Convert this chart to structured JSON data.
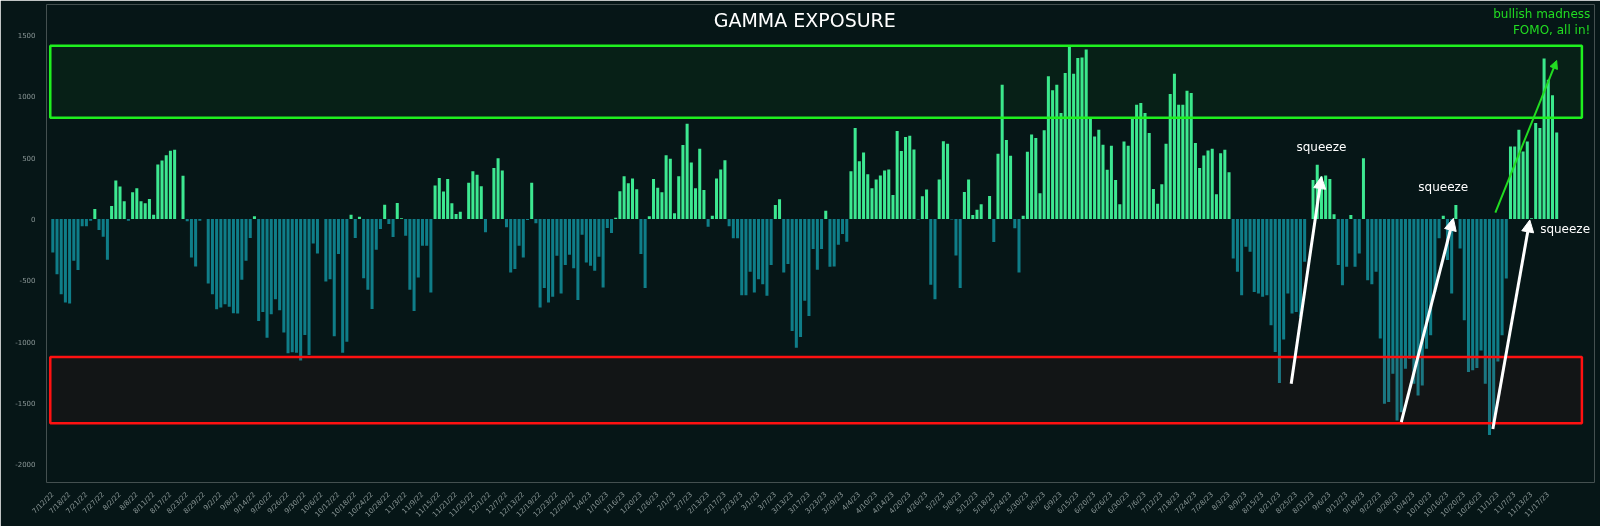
{
  "chart_data": {
    "type": "bar",
    "title": "GAMMA EXPOSURE",
    "categories": [
      "7/12/22",
      null,
      null,
      null,
      "7/18/22",
      null,
      null,
      null,
      "7/21/22",
      null,
      null,
      null,
      "7/27/22",
      null,
      null,
      null,
      "8/2/22",
      null,
      null,
      null,
      "8/8/22",
      null,
      null,
      null,
      "8/11/22",
      null,
      null,
      null,
      "8/17/22",
      null,
      null,
      null,
      "8/23/22",
      null,
      null,
      null,
      "8/29/22",
      null,
      null,
      null,
      "9/2/22",
      null,
      null,
      null,
      "9/8/22",
      null,
      null,
      null,
      "9/14/22",
      null,
      null,
      null,
      "9/20/22",
      null,
      null,
      null,
      "9/26/22",
      null,
      null,
      null,
      "9/30/22",
      null,
      null,
      null,
      "10/6/22",
      null,
      null,
      null,
      "10/12/22",
      null,
      null,
      null,
      "10/18/22",
      null,
      null,
      null,
      "10/24/22",
      null,
      null,
      null,
      "10/28/22",
      null,
      null,
      null,
      "11/3/22",
      null,
      null,
      null,
      "11/9/22",
      null,
      null,
      null,
      "11/15/22",
      null,
      null,
      null,
      "11/21/22",
      null,
      null,
      null,
      "11/25/22",
      null,
      null,
      null,
      "12/1/22",
      null,
      null,
      null,
      "12/7/22",
      null,
      null,
      null,
      "12/13/22",
      null,
      null,
      null,
      "12/19/22",
      null,
      null,
      null,
      "12/23/22",
      null,
      null,
      null,
      "12/29/22",
      null,
      null,
      null,
      "1/4/23",
      null,
      null,
      null,
      "1/10/23",
      null,
      null,
      null,
      "1/16/23",
      null,
      null,
      null,
      "1/20/23",
      null,
      null,
      null,
      "1/26/23",
      null,
      null,
      null,
      "2/1/23",
      null,
      null,
      null,
      "2/7/23",
      null,
      null,
      null,
      "2/13/23",
      null,
      null,
      null,
      "2/17/23",
      null,
      null,
      null,
      "2/23/23",
      null,
      null,
      null,
      "3/1/23",
      null,
      null,
      null,
      "3/7/23",
      null,
      null,
      null,
      "3/13/23",
      null,
      null,
      null,
      "3/17/23",
      null,
      null,
      null,
      "3/23/23",
      null,
      null,
      null,
      "3/29/23",
      null,
      null,
      null,
      "4/4/23",
      null,
      null,
      null,
      "4/10/23",
      null,
      null,
      null,
      "4/14/23",
      null,
      null,
      null,
      "4/20/23",
      null,
      null,
      null,
      "4/26/23",
      null,
      null,
      null,
      "5/2/23",
      null,
      null,
      null,
      "5/8/23",
      null,
      null,
      null,
      "5/12/23",
      null,
      null,
      null,
      "5/18/23",
      null,
      null,
      null,
      "5/24/23",
      null,
      null,
      null,
      "5/30/23",
      null,
      null,
      null,
      "6/5/23",
      null,
      null,
      null,
      "6/9/23",
      null,
      null,
      null,
      "6/15/23",
      null,
      null,
      null,
      "6/20/23",
      null,
      null,
      null,
      "6/26/23",
      null,
      null,
      null,
      "6/30/23",
      null,
      null,
      null,
      "7/6/23",
      null,
      null,
      null,
      "7/12/23",
      null,
      null,
      null,
      "7/18/23",
      null,
      null,
      null,
      "7/24/23",
      null,
      null,
      null,
      "7/28/23",
      null,
      null,
      null,
      "8/3/23",
      null,
      null,
      null,
      "8/9/23",
      null,
      null,
      null,
      "8/15/23",
      null,
      null,
      null,
      "8/21/23",
      null,
      null,
      null,
      "8/25/23",
      null,
      null,
      null,
      "8/31/23",
      null,
      null,
      null,
      "9/6/23",
      null,
      null,
      null,
      "9/12/23",
      null,
      null,
      null,
      "9/18/23",
      null,
      null,
      null,
      "9/22/23",
      null,
      null,
      null,
      "9/28/23",
      null,
      null,
      null,
      "10/4/23",
      null,
      null,
      null,
      "10/10/23",
      null,
      null,
      null,
      "10/16/23",
      null,
      null,
      null,
      "10/20/23",
      null,
      null,
      null,
      "10/26/23",
      null,
      null,
      null,
      "11/1/23",
      null,
      null,
      null,
      "11/7/23",
      null,
      null,
      null,
      "11/13/23",
      null,
      null,
      null,
      "11/17/23",
      null,
      null
    ],
    "values": [
      -273,
      -450,
      -614,
      -682,
      -690,
      -341,
      -417,
      -60,
      -60,
      -14,
      82,
      -90,
      -145,
      -333,
      106,
      314,
      265,
      145,
      -14,
      218,
      251,
      145,
      128,
      164,
      35,
      445,
      477,
      521,
      556,
      565,
      null,
      352,
      -19,
      -314,
      -387,
      -14,
      null,
      -526,
      -614,
      -736,
      -723,
      -695,
      -717,
      -769,
      -772,
      -496,
      -341,
      -155,
      22,
      -832,
      -758,
      -968,
      -777,
      -654,
      -745,
      -927,
      -1096,
      -1088,
      -1091,
      -1154,
      -946,
      -1110,
      -199,
      -281,
      null,
      -510,
      -491,
      -957,
      -286,
      -1091,
      -1001,
      35,
      -155,
      19,
      -483,
      -578,
      -734,
      -251,
      -82,
      117,
      -41,
      -147,
      131,
      5,
      -136,
      -578,
      -750,
      -477,
      -218,
      -218,
      -600,
      273,
      335,
      224,
      327,
      128,
      41,
      60,
      null,
      295,
      390,
      360,
      267,
      -109,
      null,
      417,
      496,
      395,
      -68,
      -436,
      -409,
      -218,
      -314,
      -8,
      295,
      -35,
      -723,
      -564,
      -682,
      -635,
      -300,
      -608,
      -376,
      -292,
      -401,
      -660,
      -128,
      -355,
      -382,
      -423,
      -308,
      -559,
      -74,
      -115,
      11,
      226,
      349,
      292,
      330,
      243,
      -286,
      -564,
      22,
      327,
      254,
      218,
      521,
      491,
      46,
      349,
      603,
      777,
      461,
      251,
      573,
      237,
      -63,
      27,
      330,
      404,
      480,
      -60,
      -158,
      -158,
      -622,
      -622,
      -431,
      -600,
      -491,
      -532,
      -627,
      -376,
      115,
      161,
      -436,
      -368,
      -914,
      -1050,
      -963,
      -668,
      -791,
      -245,
      -415,
      -245,
      68,
      -390,
      -387,
      -210,
      -123,
      -185,
      390,
      742,
      472,
      543,
      365,
      251,
      322,
      355,
      395,
      404,
      196,
      717,
      554,
      668,
      679,
      567,
      -5,
      185,
      240,
      -537,
      -654,
      322,
      635,
      614,
      -5,
      -297,
      -564,
      221,
      322,
      33,
      76,
      120,
      null,
      188,
      -188,
      532,
      1096,
      644,
      515,
      -76,
      -436,
      27,
      548,
      690,
      660,
      210,
      723,
      1164,
      1050,
      1096,
      864,
      1192,
      1404,
      1186,
      1314,
      1317,
      1383,
      824,
      674,
      728,
      605,
      401,
      597,
      319,
      120,
      633,
      597,
      824,
      933,
      946,
      864,
      701,
      245,
      125,
      284,
      614,
      1020,
      1186,
      933,
      933,
      1047,
      1028,
      619,
      415,
      518,
      559,
      573,
      202,
      537,
      564,
      382,
      -322,
      -431,
      -622,
      -226,
      -267,
      -595,
      -608,
      -635,
      -622,
      -867,
      -1085,
      -1339,
      -984,
      -608,
      -772,
      -758,
      -799,
      -349,
      null,
      319,
      442,
      346,
      354,
      327,
      38,
      -376,
      -540,
      -390,
      33,
      -390,
      -281,
      496,
      -499,
      -532,
      -431,
      -976,
      -1508,
      -1494,
      -1263,
      -1644,
      -1576,
      -1222,
      -1140,
      -1344,
      -1440,
      -1358,
      -1058,
      -949,
      -595,
      -158,
      27,
      -335,
      -608,
      115,
      -240,
      -826,
      -1249,
      -1235,
      -1216,
      -1072,
      -1344,
      -1762,
      -1685,
      -1162,
      -949,
      -485,
      592,
      592,
      728,
      551,
      633,
      5,
      783,
      742,
      1309,
      1137,
      1009,
      706
    ],
    "colors": [
      "#0f7d88",
      "#0f7d88",
      "#0f7d88",
      "#0f7d88",
      "#0f7d88",
      "#0f7d88",
      "#0f7d88",
      "#0f7d88",
      "#0f7d88",
      "#0f7d88",
      "#3de891",
      "#0f7d88",
      "#0f7d88",
      "#0f7d88",
      "#3de891",
      "#3de891",
      "#3de891",
      "#3de891",
      "#0f7d88",
      "#3de891",
      "#3de891",
      "#3de891",
      "#3de891",
      "#3de891",
      "#3de891",
      "#3de891",
      "#3de891",
      "#3de891",
      "#3de891",
      "#3de891",
      "#3de891",
      "#3de891",
      "#0f7d88",
      "#0f7d88",
      "#0f7d88",
      "#0f7d88",
      "#3de891",
      "#0f7d88",
      "#0f7d88",
      "#0f7d88",
      "#0f7d88",
      "#0f7d88",
      "#0f7d88",
      "#0f7d88",
      "#0f7d88",
      "#0f7d88",
      "#0f7d88",
      "#0f7d88",
      "#3de891",
      "#0f7d88",
      "#0f7d88",
      "#0f7d88",
      "#0f7d88",
      "#0f7d88",
      "#0f7d88",
      "#0f7d88",
      "#0f7d88",
      "#0f7d88",
      "#0f7d88",
      "#0f7d88",
      "#0f7d88",
      "#0f7d88",
      "#0f7d88",
      "#0f7d88",
      "#3de891",
      "#0f7d88",
      "#0f7d88",
      "#0f7d88",
      "#0f7d88",
      "#0f7d88",
      "#0f7d88",
      "#3de891",
      "#0f7d88",
      "#3de891",
      "#0f7d88",
      "#0f7d88",
      "#0f7d88",
      "#0f7d88",
      "#0f7d88",
      "#3de891",
      "#0f7d88",
      "#0f7d88",
      "#3de891",
      "#3de891",
      "#0f7d88",
      "#0f7d88",
      "#0f7d88",
      "#0f7d88",
      "#0f7d88",
      "#0f7d88",
      "#0f7d88",
      "#3de891",
      "#3de891",
      "#3de891",
      "#3de891",
      "#3de891",
      "#3de891",
      "#3de891",
      "#3de891",
      "#3de891",
      "#3de891",
      "#3de891",
      "#3de891",
      "#0f7d88",
      "#3de891",
      "#3de891",
      "#3de891",
      "#3de891",
      "#0f7d88",
      "#0f7d88",
      "#0f7d88",
      "#0f7d88",
      "#0f7d88",
      "#0f7d88",
      "#3de891",
      "#0f7d88",
      "#0f7d88",
      "#0f7d88",
      "#0f7d88",
      "#0f7d88",
      "#0f7d88",
      "#0f7d88",
      "#0f7d88",
      "#0f7d88",
      "#0f7d88",
      "#0f7d88",
      "#0f7d88",
      "#0f7d88",
      "#0f7d88",
      "#0f7d88",
      "#0f7d88",
      "#0f7d88",
      "#0f7d88",
      "#0f7d88",
      "#3de891",
      "#3de891",
      "#3de891",
      "#3de891",
      "#3de891",
      "#3de891",
      "#0f7d88",
      "#0f7d88",
      "#3de891",
      "#3de891",
      "#3de891",
      "#3de891",
      "#3de891",
      "#3de891",
      "#3de891",
      "#3de891",
      "#3de891",
      "#3de891",
      "#3de891",
      "#3de891",
      "#3de891",
      "#3de891",
      "#0f7d88",
      "#3de891",
      "#3de891",
      "#3de891",
      "#3de891",
      "#0f7d88",
      "#0f7d88",
      "#0f7d88",
      "#0f7d88",
      "#0f7d88",
      "#0f7d88",
      "#0f7d88",
      "#0f7d88",
      "#0f7d88",
      "#0f7d88",
      "#0f7d88",
      "#3de891",
      "#3de891",
      "#0f7d88",
      "#0f7d88",
      "#0f7d88",
      "#0f7d88",
      "#0f7d88",
      "#0f7d88",
      "#0f7d88",
      "#0f7d88",
      "#0f7d88",
      "#0f7d88",
      "#3de891",
      "#0f7d88",
      "#0f7d88",
      "#0f7d88",
      "#0f7d88",
      "#0f7d88",
      "#3de891",
      "#3de891",
      "#3de891",
      "#3de891",
      "#3de891",
      "#3de891",
      "#3de891",
      "#3de891",
      "#3de891",
      "#3de891",
      "#3de891",
      "#3de891",
      "#3de891",
      "#3de891",
      "#3de891",
      "#3de891",
      "#0f7d88",
      "#3de891",
      "#3de891",
      "#0f7d88",
      "#0f7d88",
      "#3de891",
      "#3de891",
      "#3de891",
      "#0f7d88",
      "#0f7d88",
      "#0f7d88",
      "#3de891",
      "#3de891",
      "#3de891",
      "#3de891",
      "#3de891",
      "#3de891",
      "#3de891",
      "#0f7d88",
      "#3de891",
      "#3de891",
      "#3de891",
      "#3de891",
      "#0f7d88",
      "#0f7d88",
      "#3de891",
      "#3de891",
      "#3de891",
      "#3de891",
      "#3de891",
      "#3de891",
      "#3de891",
      "#3de891",
      "#3de891",
      "#3de891",
      "#3de891",
      "#3de891",
      "#3de891",
      "#3de891",
      "#3de891",
      "#3de891",
      "#3de891",
      "#3de891",
      "#3de891",
      "#3de891",
      "#3de891",
      "#3de891",
      "#3de891",
      "#3de891",
      "#3de891",
      "#3de891",
      "#3de891",
      "#3de891",
      "#3de891",
      "#3de891",
      "#3de891",
      "#3de891",
      "#3de891",
      "#3de891",
      "#3de891",
      "#3de891",
      "#3de891",
      "#3de891",
      "#3de891",
      "#3de891",
      "#3de891",
      "#3de891",
      "#3de891",
      "#3de891",
      "#3de891",
      "#3de891",
      "#3de891",
      "#3de891",
      "#3de891",
      "#3de891",
      "#0f7d88",
      "#0f7d88",
      "#0f7d88",
      "#0f7d88",
      "#0f7d88",
      "#0f7d88",
      "#0f7d88",
      "#0f7d88",
      "#0f7d88",
      "#0f7d88",
      "#0f7d88",
      "#0f7d88",
      "#0f7d88",
      "#0f7d88",
      "#0f7d88",
      "#0f7d88",
      "#0f7d88",
      "#0f7d88",
      "#0f7d88",
      "#3de891",
      "#3de891",
      "#3de891",
      "#3de891",
      "#3de891",
      "#3de891",
      "#0f7d88",
      "#0f7d88",
      "#0f7d88",
      "#3de891",
      "#0f7d88",
      "#0f7d88",
      "#3de891",
      "#0f7d88",
      "#0f7d88",
      "#0f7d88",
      "#0f7d88",
      "#0f7d88",
      "#0f7d88",
      "#0f7d88",
      "#0f7d88",
      "#0f7d88",
      "#0f7d88",
      "#0f7d88",
      "#0f7d88",
      "#0f7d88",
      "#0f7d88",
      "#0f7d88",
      "#0f7d88",
      "#0f7d88",
      "#0f7d88",
      "#3de891",
      "#0f7d88",
      "#0f7d88",
      "#3de891",
      "#0f7d88",
      "#0f7d88",
      "#0f7d88",
      "#0f7d88",
      "#0f7d88",
      "#0f7d88",
      "#0f7d88",
      "#0f7d88",
      "#0f7d88",
      "#0f7d88",
      "#0f7d88",
      "#0f7d88",
      "#3de891",
      "#3de891",
      "#3de891",
      "#3de891",
      "#3de891",
      "#3de891",
      "#3de891",
      "#3de891",
      "#3de891",
      "#3de891",
      "#3de891",
      "#3de891"
    ],
    "ylim": [
      -2150,
      1750
    ],
    "yticks": [
      -2000,
      -1500,
      -1000,
      -500,
      0,
      500,
      1000,
      1500
    ],
    "bands": [
      {
        "axis": "y",
        "from": 826,
        "to": 1413,
        "color": "#1ff01f"
      },
      {
        "axis": "y",
        "from": -1666,
        "to": -1126,
        "color": "#ff1111"
      }
    ],
    "annotations": [
      "squeeze",
      "squeeze",
      "squeeze",
      "bullish madness\nFOMO, all in!"
    ]
  }
}
